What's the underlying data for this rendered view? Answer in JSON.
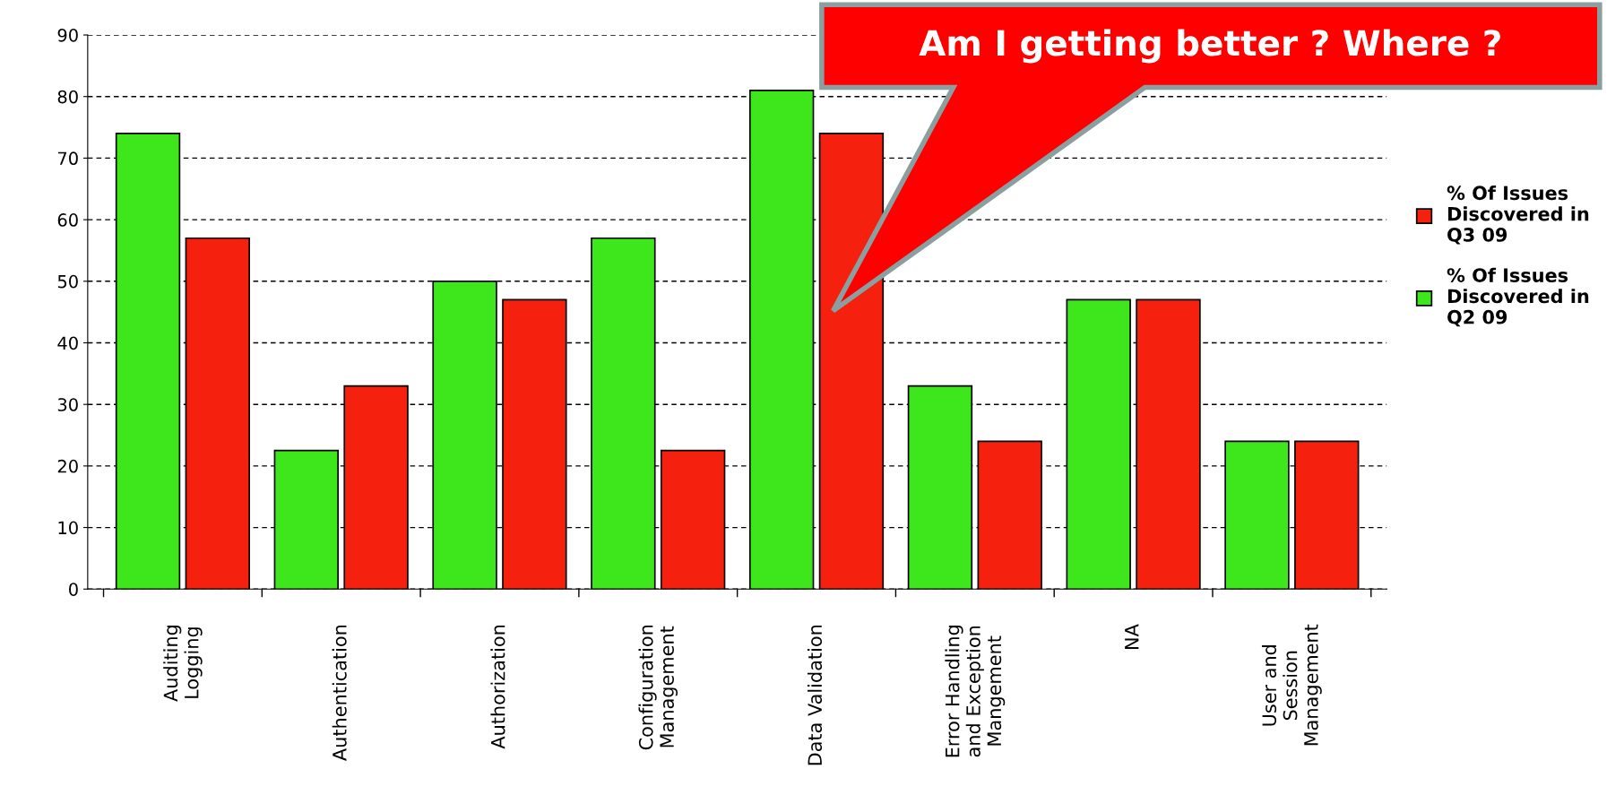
{
  "chart_data": {
    "type": "bar",
    "categories": [
      "Auditing\nLogging",
      "Authentication",
      "Authorization",
      "Configuration\nManagement",
      "Data Validation",
      "Error Handling\nand Exception\nMangement",
      "NA",
      "User and\nSession\nManagement"
    ],
    "series": [
      {
        "name": "% Of Issues\nDiscovered in\nQ2 09",
        "color": "#3ee61c",
        "values": [
          74,
          22.5,
          50,
          57,
          81,
          33,
          47,
          24
        ]
      },
      {
        "name": "% Of Issues\nDiscovered in\nQ3 09",
        "color": "#f5210e",
        "values": [
          57,
          33,
          47,
          22.5,
          74,
          24,
          47,
          24
        ]
      }
    ],
    "ylim": [
      0,
      90
    ],
    "yticks": [
      0,
      10,
      20,
      30,
      40,
      50,
      60,
      70,
      80,
      90
    ],
    "grid": "y",
    "legend": "right",
    "annotations": [
      "Am I getting better ? Where ?"
    ]
  }
}
